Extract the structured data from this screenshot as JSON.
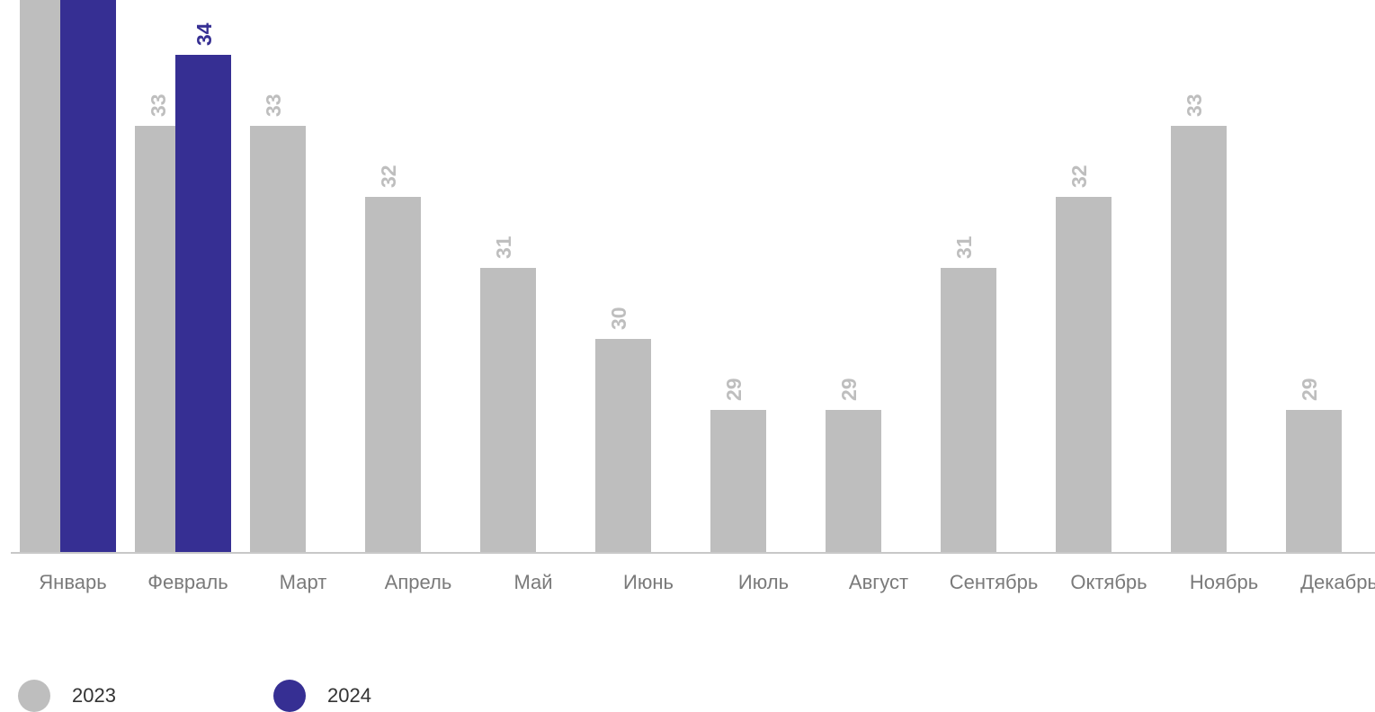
{
  "chart_data": {
    "type": "bar",
    "categories": [
      "Январь",
      "Февраль",
      "Март",
      "Апрель",
      "Май",
      "Июнь",
      "Июль",
      "Август",
      "Сентябрь",
      "Октябрь",
      "Ноябрь",
      "Декабрь"
    ],
    "series": [
      {
        "name": "2023",
        "color": "#bebebe",
        "values": [
          35,
          33,
          33,
          32,
          31,
          30,
          29,
          29,
          31,
          32,
          33,
          29
        ]
      },
      {
        "name": "2024",
        "color": "#362f93",
        "values": [
          35,
          34,
          null,
          null,
          null,
          null,
          null,
          null,
          null,
          null,
          null,
          null
        ]
      }
    ],
    "title": "",
    "xlabel": "",
    "ylabel": "",
    "ylim": [
      27,
      35
    ],
    "grid": false,
    "legend": "bottom-left"
  },
  "legend": {
    "items": [
      {
        "label": "2023",
        "color": "#bebebe"
      },
      {
        "label": "2024",
        "color": "#362f93"
      }
    ]
  }
}
